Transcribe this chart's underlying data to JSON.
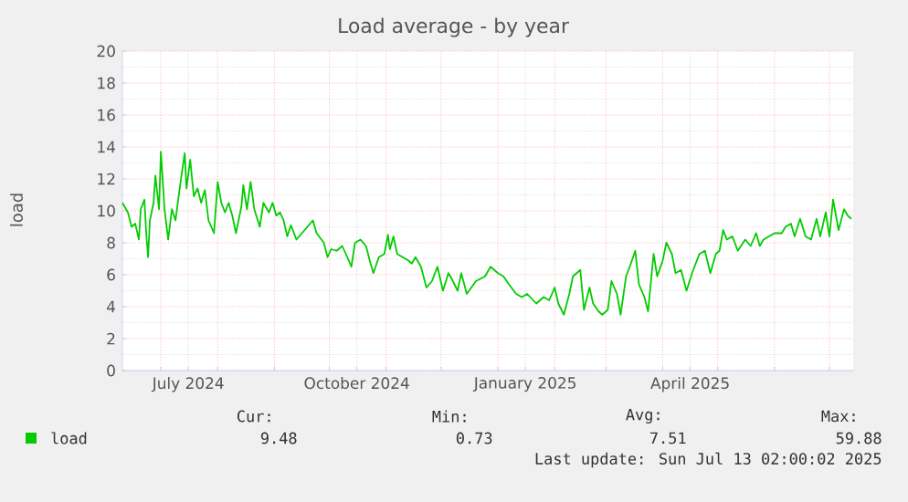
{
  "chart_data": {
    "type": "line",
    "title": "Load average - by year",
    "ylabel": "load",
    "xlim": [
      "2024-06-10",
      "2025-07-14"
    ],
    "xticks": [
      {
        "value": "2024-07-01",
        "label": null
      },
      {
        "value": "2024-07-16",
        "label": "July 2024"
      },
      {
        "value": "2024-08-01",
        "label": null
      },
      {
        "value": "2024-09-01",
        "label": null
      },
      {
        "value": "2024-10-01",
        "label": null
      },
      {
        "value": "2024-10-16",
        "label": "October 2024"
      },
      {
        "value": "2024-11-01",
        "label": null
      },
      {
        "value": "2024-12-01",
        "label": null
      },
      {
        "value": "2025-01-01",
        "label": null
      },
      {
        "value": "2025-01-16",
        "label": "January 2025"
      },
      {
        "value": "2025-02-01",
        "label": null
      },
      {
        "value": "2025-03-01",
        "label": null
      },
      {
        "value": "2025-04-01",
        "label": null
      },
      {
        "value": "2025-04-16",
        "label": "April 2025"
      },
      {
        "value": "2025-05-01",
        "label": null
      },
      {
        "value": "2025-06-01",
        "label": null
      },
      {
        "value": "2025-07-01",
        "label": null
      }
    ],
    "ylim": [
      0,
      20
    ],
    "yticks": [
      0,
      2,
      4,
      6,
      8,
      10,
      12,
      14,
      16,
      18,
      20
    ],
    "grid": true,
    "legend": "bottom",
    "x": [
      "2024-06-10",
      "2024-06-13",
      "2024-06-15",
      "2024-06-17",
      "2024-06-19",
      "2024-06-20",
      "2024-06-22",
      "2024-06-23",
      "2024-06-24",
      "2024-06-25",
      "2024-06-27",
      "2024-06-28",
      "2024-06-30",
      "2024-07-01",
      "2024-07-03",
      "2024-07-05",
      "2024-07-07",
      "2024-07-09",
      "2024-07-10",
      "2024-07-12",
      "2024-07-14",
      "2024-07-15",
      "2024-07-17",
      "2024-07-19",
      "2024-07-21",
      "2024-07-23",
      "2024-07-25",
      "2024-07-27",
      "2024-07-30",
      "2024-08-01",
      "2024-08-03",
      "2024-08-05",
      "2024-08-07",
      "2024-08-09",
      "2024-08-11",
      "2024-08-14",
      "2024-08-15",
      "2024-08-17",
      "2024-08-19",
      "2024-08-21",
      "2024-08-24",
      "2024-08-26",
      "2024-08-29",
      "2024-08-31",
      "2024-09-02",
      "2024-09-04",
      "2024-09-06",
      "2024-09-08",
      "2024-09-10",
      "2024-09-13",
      "2024-09-16",
      "2024-09-19",
      "2024-09-22",
      "2024-09-24",
      "2024-09-28",
      "2024-09-30",
      "2024-10-02",
      "2024-10-05",
      "2024-10-08",
      "2024-10-10",
      "2024-10-13",
      "2024-10-15",
      "2024-10-18",
      "2024-10-21",
      "2024-10-23",
      "2024-10-25",
      "2024-10-28",
      "2024-10-31",
      "2024-11-02",
      "2024-11-03",
      "2024-11-05",
      "2024-11-07",
      "2024-11-10",
      "2024-11-13",
      "2024-11-15",
      "2024-11-17",
      "2024-11-20",
      "2024-11-23",
      "2024-11-26",
      "2024-11-29",
      "2024-12-02",
      "2024-12-05",
      "2024-12-07",
      "2024-12-10",
      "2024-12-12",
      "2024-12-15",
      "2024-12-20",
      "2024-12-25",
      "2024-12-28",
      "2025-01-01",
      "2025-01-04",
      "2025-01-07",
      "2025-01-11",
      "2025-01-14",
      "2025-01-17",
      "2025-01-22",
      "2025-01-26",
      "2025-01-29",
      "2025-02-01",
      "2025-02-03",
      "2025-02-06",
      "2025-02-09",
      "2025-02-11",
      "2025-02-15",
      "2025-02-17",
      "2025-02-20",
      "2025-02-22",
      "2025-02-25",
      "2025-02-27",
      "2025-03-02",
      "2025-03-04",
      "2025-03-07",
      "2025-03-09",
      "2025-03-12",
      "2025-03-14",
      "2025-03-17",
      "2025-03-19",
      "2025-03-22",
      "2025-03-24",
      "2025-03-27",
      "2025-03-29",
      "2025-04-01",
      "2025-04-03",
      "2025-04-06",
      "2025-04-08",
      "2025-04-11",
      "2025-04-14",
      "2025-04-17",
      "2025-04-21",
      "2025-04-24",
      "2025-04-27",
      "2025-04-30",
      "2025-05-02",
      "2025-05-04",
      "2025-05-06",
      "2025-05-09",
      "2025-05-12",
      "2025-05-16",
      "2025-05-19",
      "2025-05-22",
      "2025-05-24",
      "2025-05-26",
      "2025-05-29",
      "2025-06-01",
      "2025-06-05",
      "2025-06-07",
      "2025-06-10",
      "2025-06-12",
      "2025-06-15",
      "2025-06-18",
      "2025-06-21",
      "2025-06-24",
      "2025-06-26",
      "2025-06-29",
      "2025-07-01",
      "2025-07-03",
      "2025-07-06",
      "2025-07-09",
      "2025-07-11",
      "2025-07-13"
    ],
    "series": [
      {
        "name": "load",
        "color": "#00cc00",
        "values": [
          10.5,
          9.9,
          9.0,
          9.2,
          8.2,
          10.1,
          10.7,
          8.6,
          7.1,
          9.4,
          10.5,
          12.2,
          10.1,
          13.7,
          10.1,
          8.2,
          10.1,
          9.4,
          10.3,
          12.0,
          13.6,
          11.4,
          13.2,
          10.9,
          11.4,
          10.5,
          11.3,
          9.4,
          8.6,
          11.8,
          10.5,
          9.9,
          10.5,
          9.7,
          8.6,
          10.3,
          11.6,
          10.1,
          11.8,
          10.1,
          9.0,
          10.5,
          9.9,
          10.5,
          9.7,
          9.9,
          9.4,
          8.4,
          9.1,
          8.2,
          8.6,
          9.0,
          9.4,
          8.6,
          8.0,
          7.1,
          7.6,
          7.5,
          7.8,
          7.3,
          6.5,
          8.0,
          8.2,
          7.8,
          6.9,
          6.1,
          7.1,
          7.3,
          8.5,
          7.6,
          8.4,
          7.3,
          7.1,
          6.9,
          6.7,
          7.1,
          6.5,
          5.2,
          5.6,
          6.5,
          5.0,
          6.1,
          5.7,
          5.0,
          6.1,
          4.8,
          5.6,
          5.9,
          6.5,
          6.1,
          5.9,
          5.4,
          4.8,
          4.6,
          4.8,
          4.2,
          4.6,
          4.4,
          5.2,
          4.2,
          3.5,
          4.8,
          5.9,
          6.3,
          3.8,
          5.2,
          4.2,
          3.7,
          3.5,
          3.8,
          5.6,
          4.8,
          3.5,
          5.9,
          6.5,
          7.5,
          5.4,
          4.6,
          3.7,
          7.3,
          5.9,
          6.9,
          8.0,
          7.3,
          6.1,
          6.3,
          5.0,
          6.1,
          7.3,
          7.5,
          6.1,
          7.3,
          7.5,
          8.8,
          8.2,
          8.4,
          7.5,
          8.2,
          7.8,
          8.6,
          7.8,
          8.2,
          8.4,
          8.6,
          8.6,
          9.0,
          9.2,
          8.4,
          9.5,
          8.4,
          8.2,
          9.5,
          8.4,
          9.9,
          8.4,
          10.7,
          8.8,
          10.1,
          9.7,
          9.5
        ]
      }
    ],
    "annotations": [
      "Cur:",
      "Min:",
      "Avg:",
      "Max:",
      "9.48",
      "0.73",
      "7.51",
      "59.88",
      "Last update: Sun Jul 13 02:00:02 2025"
    ]
  }
}
